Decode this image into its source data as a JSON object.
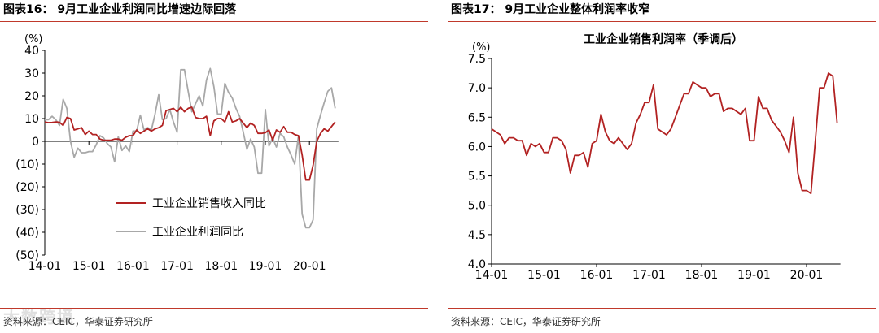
{
  "chart_data": [
    {
      "type": "line",
      "title": "图表16： 9月工业企业利润同比增速边际回落",
      "ylabel": "(%)",
      "ylim": [
        -50,
        40
      ],
      "yticks": [
        "40",
        "30",
        "20",
        "10",
        "0",
        "(10)",
        "(20)",
        "(30)",
        "(40)",
        "(50)"
      ],
      "ytick_values": [
        40,
        30,
        20,
        10,
        0,
        -10,
        -20,
        -30,
        -40,
        -50
      ],
      "xtick_labels": [
        "14-01",
        "15-01",
        "16-01",
        "17-01",
        "18-01",
        "19-01",
        "20-01"
      ],
      "x_start_month": "2014-01",
      "legend": [
        "工业企业销售收入同比",
        "工业企业利润同比"
      ],
      "series": [
        {
          "name": "工业企业销售收入同比",
          "color": "#b22222",
          "values": [
            8.5,
            8.2,
            8.3,
            8.5,
            8.4,
            7,
            10.5,
            10,
            5,
            5.5,
            6,
            3,
            4.5,
            3,
            3,
            1,
            0.5,
            0.5,
            0.5,
            1,
            1,
            0.5,
            1.8,
            2.5,
            2.5,
            5,
            3.5,
            4.5,
            5.5,
            4.5,
            5.5,
            6,
            7,
            13.5,
            14,
            14.5,
            13,
            15,
            13,
            14.5,
            15,
            10.5,
            10,
            10,
            11,
            2.5,
            9,
            10,
            10,
            8.5,
            13,
            8.5,
            9,
            10,
            8,
            6,
            8,
            7,
            3.5,
            3.5,
            3.8,
            5,
            0.5,
            5,
            4,
            6.5,
            4,
            4,
            3,
            2.5,
            -6,
            -17,
            -17,
            -10.5,
            0,
            3.5,
            5.5,
            4.5,
            6.5,
            8.5
          ]
        },
        {
          "name": "工业企业利润同比",
          "color": "#a8a8a8",
          "values": [
            9.5,
            9.5,
            11,
            9.5,
            7,
            18.5,
            14.5,
            0,
            -7,
            -3,
            -5,
            -5,
            -4.5,
            -4.5,
            -1.5,
            2.5,
            1.5,
            -1,
            -2.5,
            -9,
            2,
            -4,
            -2,
            -4.5,
            4.5,
            4.5,
            11.5,
            5,
            6,
            5,
            12,
            20.5,
            9.5,
            10,
            14,
            8.5,
            4,
            31.5,
            31.5,
            22,
            13,
            16.5,
            20,
            15.5,
            27,
            32,
            24,
            12,
            12,
            25.5,
            21.5,
            19,
            14.5,
            11,
            4,
            -3.5,
            1,
            -2.5,
            -14,
            -14,
            14,
            -2,
            1.5,
            -2.5,
            3.5,
            2,
            -2.5,
            -6,
            -10,
            2.5,
            -32,
            -38,
            -38,
            -34.5,
            5.5,
            11.5,
            17,
            22,
            23.5,
            14.5
          ]
        }
      ]
    },
    {
      "type": "line",
      "title": "图表17： 9月工业企业整体利润率收窄",
      "subtitle": "工业企业销售利润率（季调后）",
      "ylabel": "(%)",
      "ylim": [
        4.0,
        7.5
      ],
      "yticks": [
        "7.5",
        "7.0",
        "6.5",
        "6.0",
        "5.5",
        "5.0",
        "4.5",
        "4.0"
      ],
      "ytick_values": [
        7.5,
        7.0,
        6.5,
        6.0,
        5.5,
        5.0,
        4.5,
        4.0
      ],
      "xtick_labels": [
        "14-01",
        "15-01",
        "16-01",
        "17-01",
        "18-01",
        "19-01",
        "20-01"
      ],
      "x_start_month": "2014-01",
      "series": [
        {
          "name": "工业企业销售利润率（季调后）",
          "color": "#b22222",
          "values": [
            6.3,
            6.25,
            6.2,
            6.05,
            6.15,
            6.15,
            6.1,
            6.1,
            5.85,
            6.05,
            6.0,
            6.05,
            5.9,
            5.9,
            6.15,
            6.15,
            6.1,
            5.95,
            5.55,
            5.85,
            5.85,
            5.9,
            5.65,
            6.05,
            6.1,
            6.55,
            6.25,
            6.1,
            6.05,
            6.15,
            6.05,
            5.95,
            6.05,
            6.4,
            6.55,
            6.75,
            6.75,
            7.05,
            6.3,
            6.25,
            6.2,
            6.3,
            6.5,
            6.7,
            6.9,
            6.9,
            7.1,
            7.05,
            7.0,
            7.0,
            6.85,
            6.9,
            6.9,
            6.6,
            6.65,
            6.65,
            6.6,
            6.55,
            6.65,
            6.1,
            6.1,
            6.85,
            6.65,
            6.65,
            6.45,
            6.35,
            6.25,
            6.1,
            5.9,
            6.5,
            5.55,
            5.25,
            5.25,
            5.2,
            6.1,
            7.0,
            7.0,
            7.25,
            7.2,
            6.4
          ]
        }
      ]
    }
  ],
  "source_left": "资料来源：CEIC，华泰证券研究所",
  "source_right": "资料来源：CEIC，华泰证券研究所",
  "watermark": "大数跨境",
  "colors": {
    "accent_red": "#c0392b",
    "series_red": "#b22222",
    "series_gray": "#a8a8a8"
  }
}
